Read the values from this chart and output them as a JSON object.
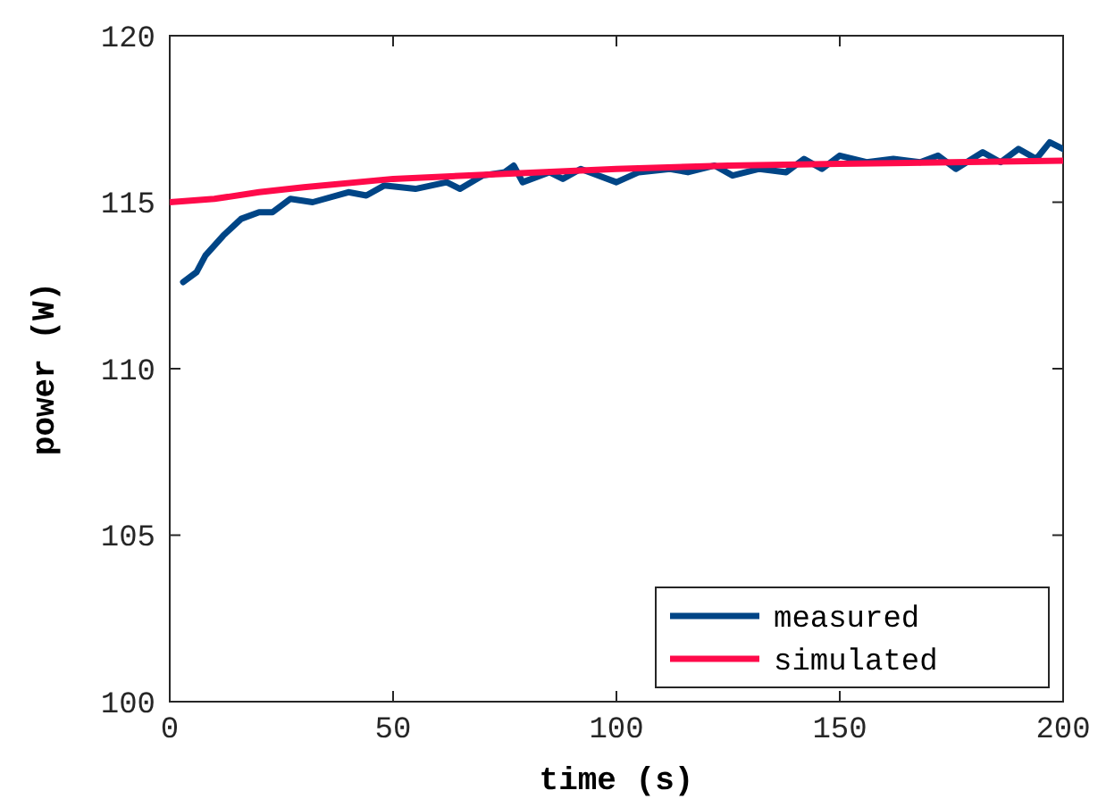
{
  "chart_data": {
    "type": "line",
    "xlabel": "time (s)",
    "ylabel": "power (W)",
    "xlim": [
      0,
      200
    ],
    "ylim": [
      100,
      120
    ],
    "xticks": [
      0,
      50,
      100,
      150,
      200
    ],
    "yticks": [
      100,
      105,
      110,
      115,
      120
    ],
    "grid": false,
    "legend": "bottom right",
    "line_style": "solid",
    "marker": "none",
    "series": [
      {
        "name": "measured",
        "color": "#004586",
        "x": [
          3,
          6,
          8,
          12,
          16,
          20,
          23,
          27,
          32,
          40,
          44,
          48,
          55,
          62,
          65,
          70,
          75,
          77,
          79,
          85,
          88,
          92,
          96,
          100,
          105,
          112,
          116,
          122,
          126,
          132,
          138,
          142,
          146,
          150,
          156,
          162,
          168,
          172,
          176,
          182,
          186,
          190,
          194,
          197,
          200
        ],
        "values": [
          112.6,
          112.9,
          113.4,
          114.0,
          114.5,
          114.7,
          114.7,
          115.1,
          115.0,
          115.3,
          115.2,
          115.5,
          115.4,
          115.6,
          115.4,
          115.8,
          115.9,
          116.1,
          115.6,
          115.9,
          115.7,
          116.0,
          115.8,
          115.6,
          115.9,
          116.0,
          115.9,
          116.1,
          115.8,
          116.0,
          115.9,
          116.3,
          116.0,
          116.4,
          116.2,
          116.3,
          116.2,
          116.4,
          116.0,
          116.5,
          116.2,
          116.6,
          116.3,
          116.8,
          116.6
        ]
      },
      {
        "name": "simulated",
        "color": "#ff0a4a",
        "x": [
          0,
          10,
          20,
          30,
          50,
          75,
          100,
          125,
          150,
          175,
          200
        ],
        "values": [
          115.0,
          115.1,
          115.3,
          115.45,
          115.7,
          115.85,
          116.0,
          116.1,
          116.15,
          116.2,
          116.25
        ]
      }
    ]
  }
}
